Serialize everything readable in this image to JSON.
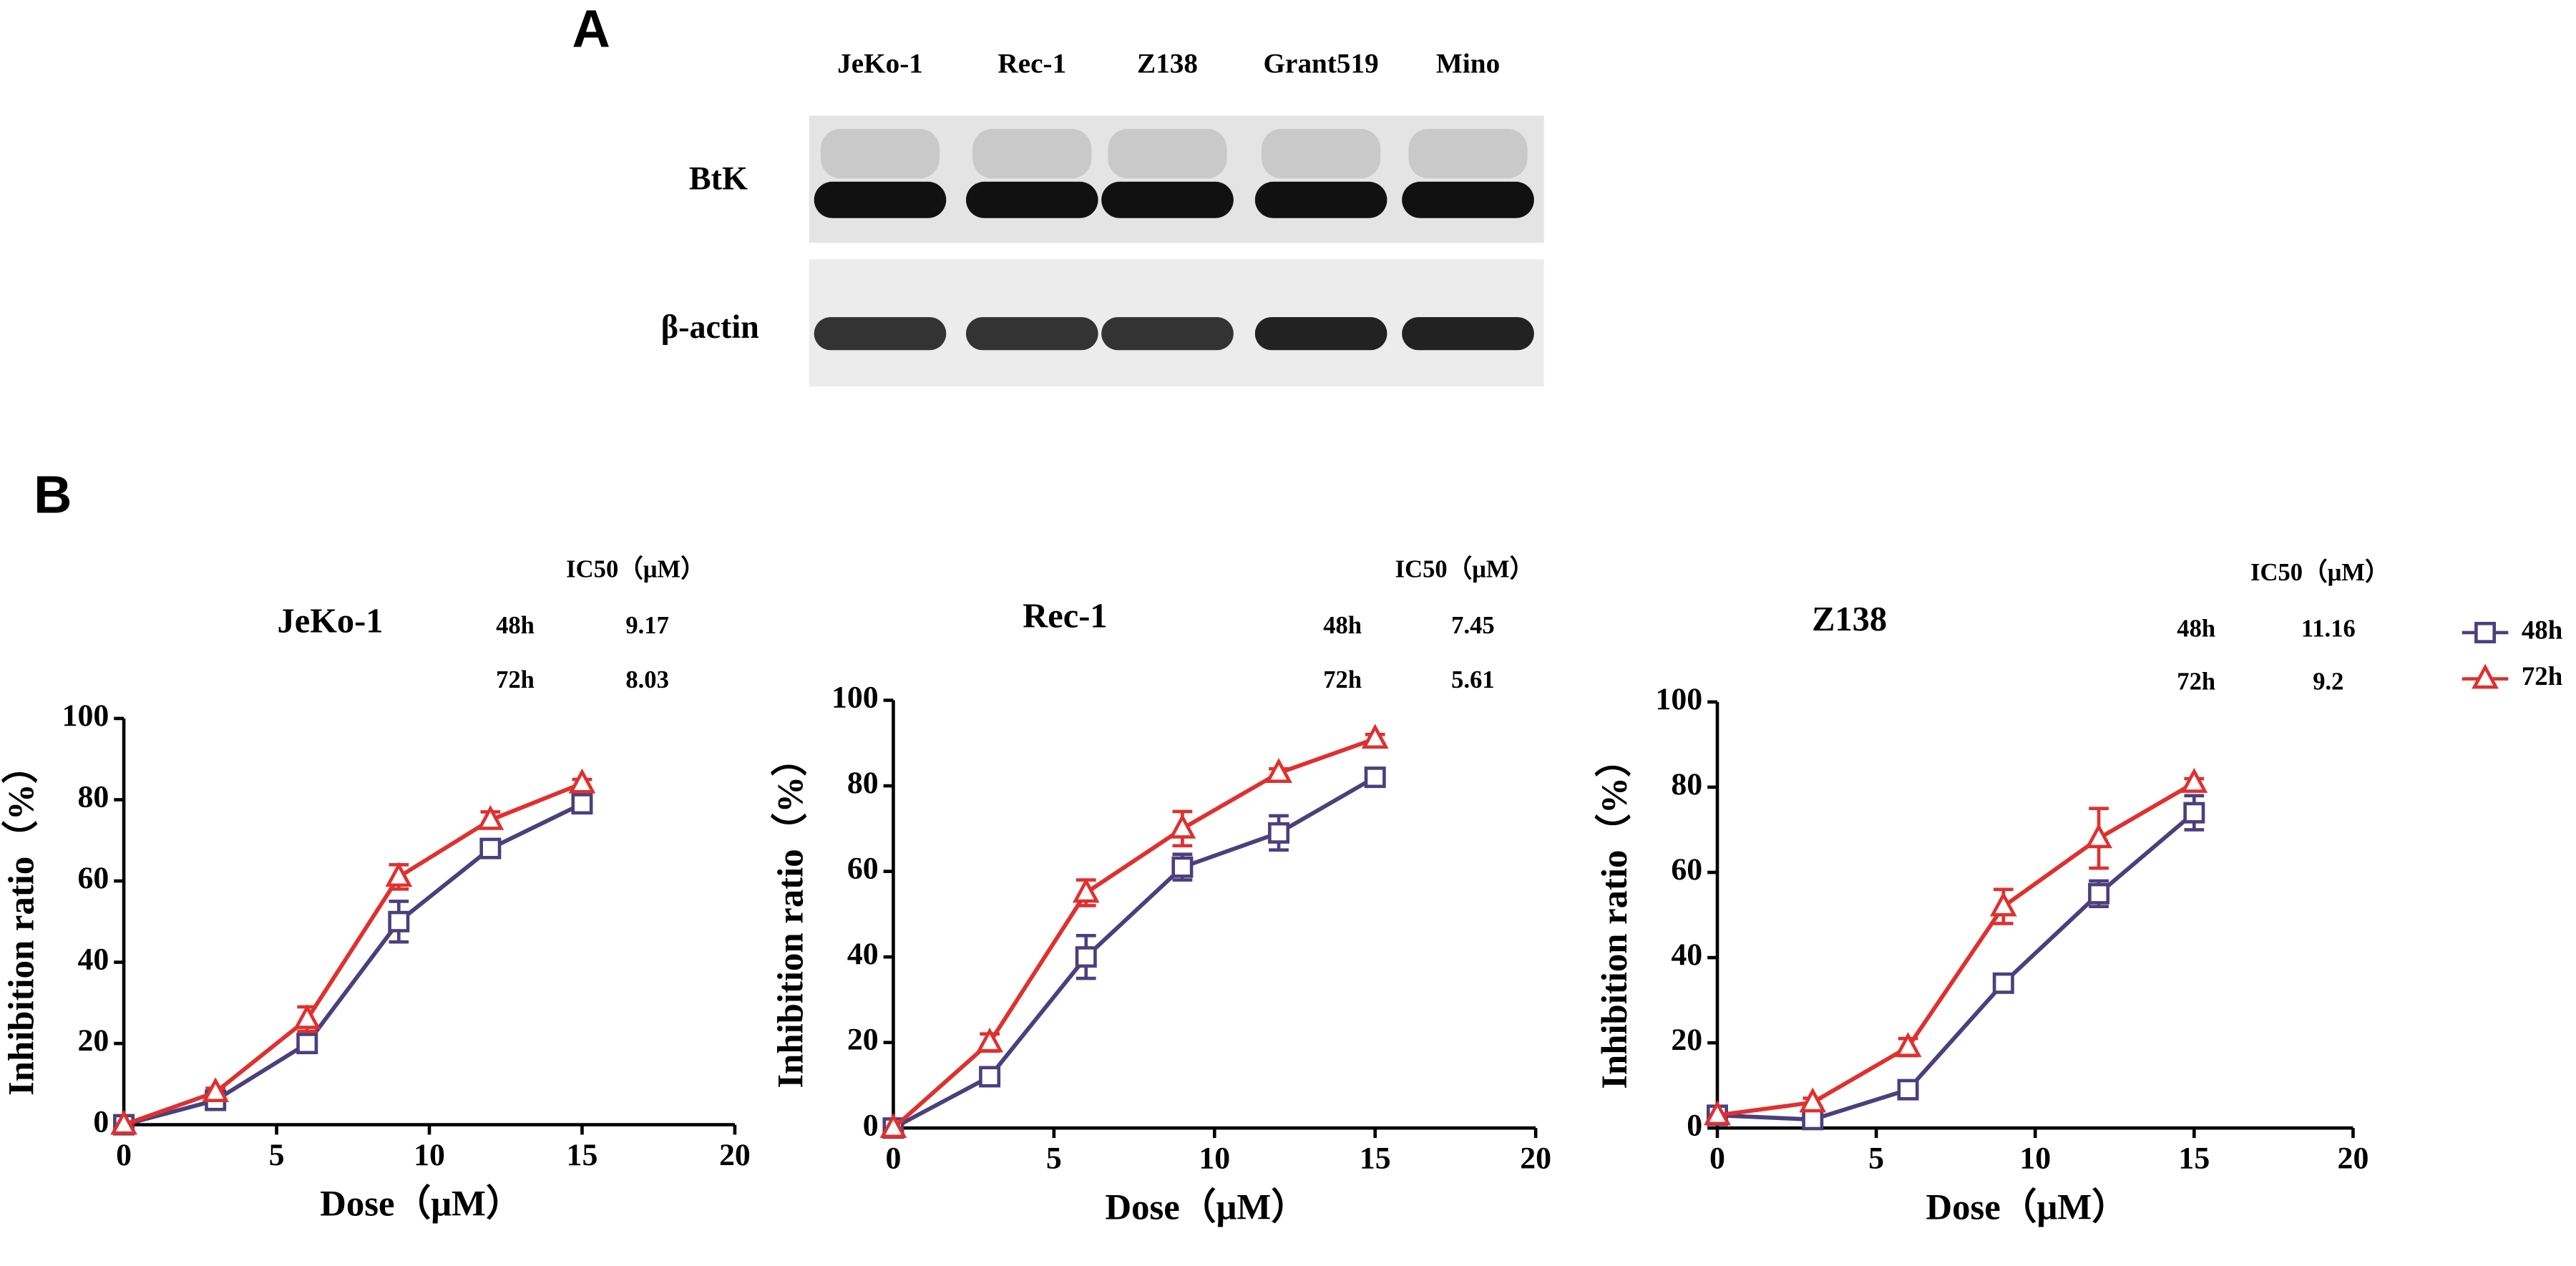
{
  "panels": {
    "a": "A",
    "b": "B"
  },
  "blot": {
    "lanes": [
      "JeKo-1",
      "Rec-1",
      "Z138",
      "Grant519",
      "Mino"
    ],
    "rows": [
      "BtK",
      "β-actin"
    ]
  },
  "chart_data": [
    {
      "type": "line",
      "title": "JeKo-1",
      "xlabel": "Dose（μM）",
      "ylabel": "Inhibition ratio（%）",
      "x": [
        0,
        3,
        6,
        9,
        12,
        15
      ],
      "xlim": [
        0,
        20
      ],
      "xticks": [
        0,
        5,
        10,
        15,
        20
      ],
      "ylim": [
        0,
        100
      ],
      "yticks": [
        0,
        20,
        40,
        60,
        80,
        100
      ],
      "ic50_header": "IC50（μM）",
      "legend": false,
      "series": [
        {
          "name": "48h",
          "color": "#4b3f7d",
          "marker": "square",
          "values": [
            0,
            6,
            20,
            50,
            68,
            79
          ],
          "errors": [
            0,
            1,
            2,
            5,
            2,
            1
          ],
          "ic50": 9.17
        },
        {
          "name": "72h",
          "color": "#e0302e",
          "marker": "triangle",
          "values": [
            0,
            8,
            26,
            61,
            75,
            84
          ],
          "errors": [
            0,
            1,
            3,
            3,
            2,
            1
          ],
          "ic50": 8.03
        }
      ]
    },
    {
      "type": "line",
      "title": "Rec-1",
      "xlabel": "Dose（μM）",
      "ylabel": "Inhibition ratio（%）",
      "x": [
        0,
        3,
        6,
        9,
        12,
        15
      ],
      "xlim": [
        0,
        20
      ],
      "xticks": [
        0,
        5,
        10,
        15,
        20
      ],
      "ylim": [
        0,
        100
      ],
      "yticks": [
        0,
        20,
        40,
        60,
        80,
        100
      ],
      "ic50_header": "IC50（μM）",
      "legend": false,
      "series": [
        {
          "name": "48h",
          "color": "#4b3f7d",
          "marker": "square",
          "values": [
            0,
            12,
            40,
            61,
            69,
            82
          ],
          "errors": [
            0,
            2,
            5,
            3,
            4,
            1
          ],
          "ic50": 7.45
        },
        {
          "name": "72h",
          "color": "#e0302e",
          "marker": "triangle",
          "values": [
            0,
            20,
            55,
            70,
            83,
            91
          ],
          "errors": [
            0,
            2,
            3,
            4,
            1,
            1
          ],
          "ic50": 5.61
        }
      ]
    },
    {
      "type": "line",
      "title": "Z138",
      "xlabel": "Dose（μM）",
      "ylabel": "Inhibition ratio（%）",
      "x": [
        0,
        3,
        6,
        9,
        12,
        15
      ],
      "xlim": [
        0,
        20
      ],
      "xticks": [
        0,
        5,
        10,
        15,
        20
      ],
      "ylim": [
        0,
        100
      ],
      "yticks": [
        0,
        20,
        40,
        60,
        80,
        100
      ],
      "ic50_header": "IC50（μM）",
      "legend": true,
      "series": [
        {
          "name": "48h",
          "color": "#4b3f7d",
          "marker": "square",
          "values": [
            3,
            2,
            9,
            34,
            55,
            74
          ],
          "errors": [
            0,
            1,
            1,
            2,
            3,
            4
          ],
          "ic50": 11.16
        },
        {
          "name": "72h",
          "color": "#e0302e",
          "marker": "triangle",
          "values": [
            3,
            6,
            19,
            52,
            68,
            81
          ],
          "errors": [
            0,
            1,
            2,
            4,
            7,
            1
          ],
          "ic50": 9.2
        }
      ]
    }
  ]
}
